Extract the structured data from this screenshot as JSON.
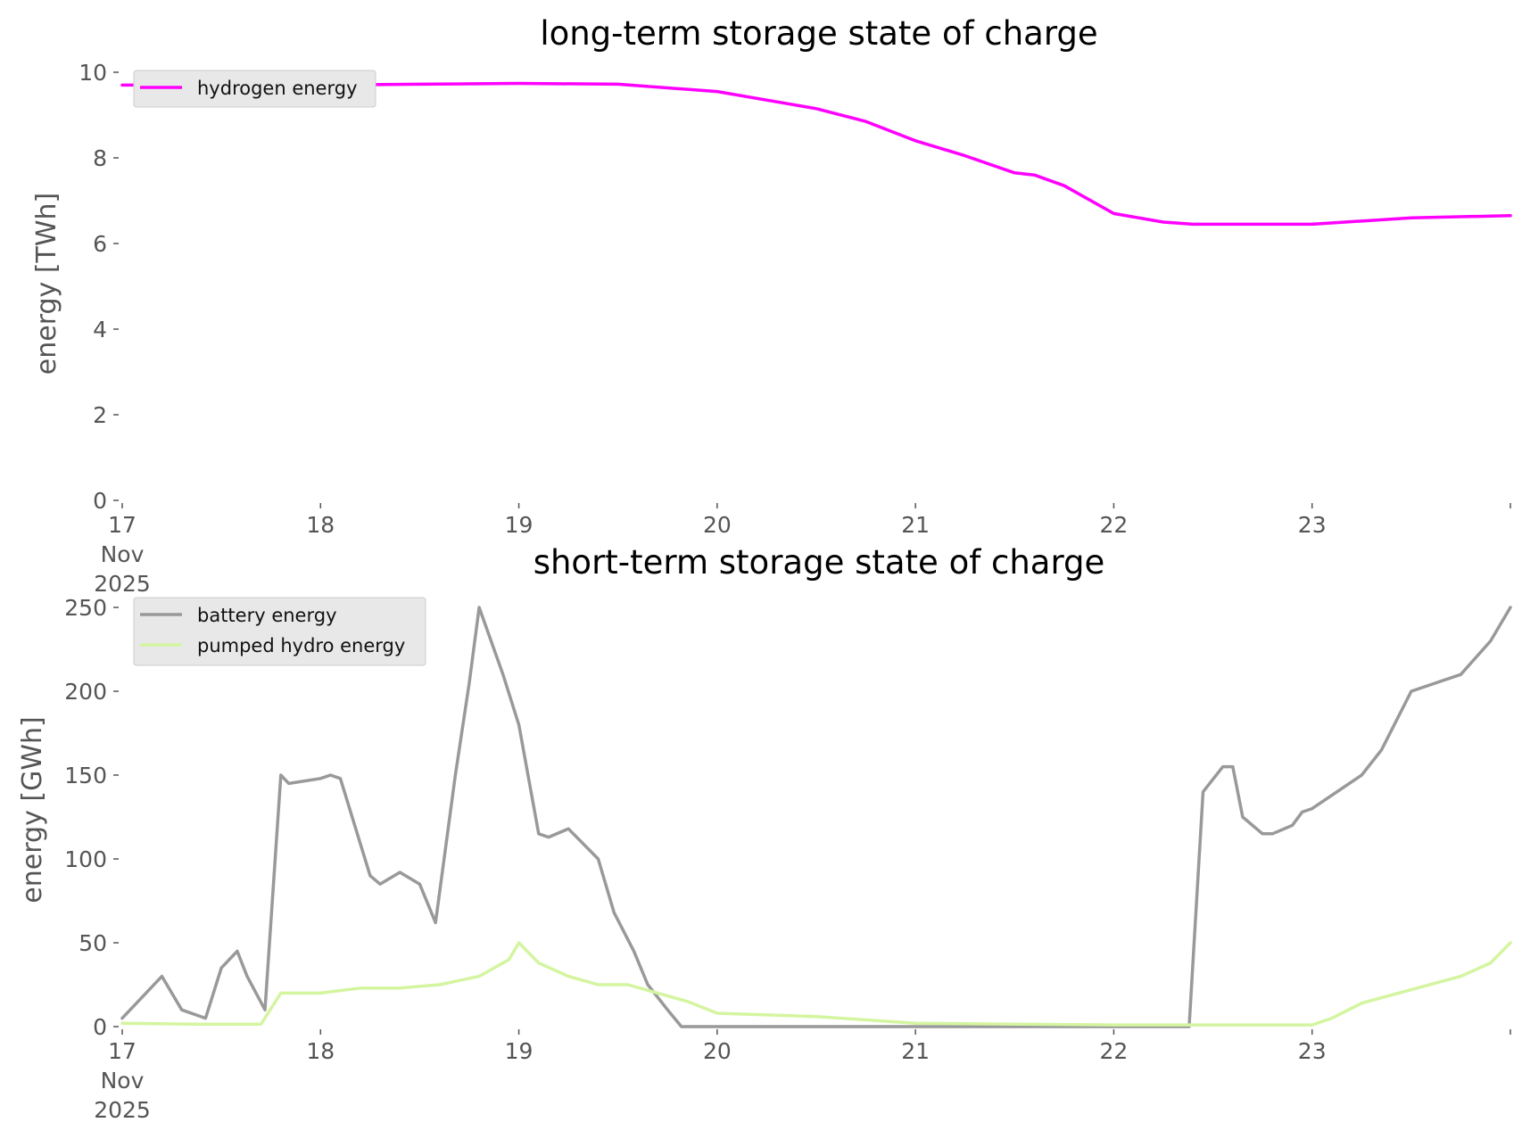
{
  "colors": {
    "hydrogen": "#ff00ff",
    "battery": "#999999",
    "pumped_hydro": "#d4f5a0",
    "legend_bg": "#e8e8e8",
    "tick": "#555555"
  },
  "x_ticks": {
    "labels": [
      "17",
      "18",
      "19",
      "20",
      "21",
      "22",
      "23"
    ],
    "first_extra_lines": [
      "Nov",
      "2025"
    ]
  },
  "chart_data": [
    {
      "type": "line",
      "title": "long-term storage state of charge",
      "xlabel": "",
      "ylabel": "energy [TWh]",
      "xlim": [
        0,
        7
      ],
      "ylim": [
        0,
        10
      ],
      "y_ticks": [
        0,
        2,
        4,
        6,
        8,
        10
      ],
      "grid": false,
      "legend_position": "top-left",
      "x_unit": "days since 17 Nov 2025",
      "series": [
        {
          "name": "hydrogen energy",
          "color": "#ff00ff",
          "x": [
            0,
            0.5,
            1,
            1.5,
            2,
            2.5,
            3,
            3.5,
            3.75,
            4,
            4.25,
            4.5,
            4.6,
            4.75,
            5,
            5.25,
            5.4,
            6,
            6.5,
            7
          ],
          "y": [
            9.7,
            9.7,
            9.7,
            9.72,
            9.74,
            9.72,
            9.55,
            9.15,
            8.85,
            8.4,
            8.05,
            7.65,
            7.6,
            7.35,
            6.7,
            6.5,
            6.45,
            6.45,
            6.6,
            6.65
          ]
        }
      ]
    },
    {
      "type": "line",
      "title": "short-term storage state of charge",
      "xlabel": "",
      "ylabel": "energy [GWh]",
      "xlim": [
        0,
        7
      ],
      "ylim": [
        0,
        250
      ],
      "y_ticks": [
        0,
        50,
        100,
        150,
        200,
        250
      ],
      "grid": false,
      "legend_position": "top-left",
      "x_unit": "days since 17 Nov 2025",
      "series": [
        {
          "name": "battery energy",
          "color": "#999999",
          "x": [
            0,
            0.2,
            0.3,
            0.42,
            0.5,
            0.58,
            0.63,
            0.72,
            0.8,
            0.84,
            1,
            1.05,
            1.1,
            1.25,
            1.3,
            1.4,
            1.5,
            1.58,
            1.68,
            1.75,
            1.8,
            1.92,
            2,
            2.1,
            2.15,
            2.25,
            2.4,
            2.48,
            2.58,
            2.65,
            2.75,
            2.82,
            2.95,
            3.05,
            3.2,
            3.4,
            3.6,
            3.8,
            4.2,
            4.4,
            4.6,
            4.8,
            5,
            5.2,
            5.25,
            5.3,
            5.38,
            5.45,
            5.55,
            5.6,
            5.65,
            5.75,
            5.8,
            5.9,
            5.95,
            6,
            6.25,
            6.35,
            6.5,
            6.75,
            6.9,
            7
          ],
          "y": [
            5,
            30,
            10,
            5,
            35,
            45,
            30,
            10,
            150,
            145,
            148,
            150,
            148,
            90,
            85,
            92,
            85,
            62,
            150,
            205,
            250,
            210,
            180,
            115,
            113,
            118,
            100,
            68,
            45,
            25,
            10,
            0,
            0,
            0,
            0,
            0,
            0,
            0,
            0,
            0,
            0,
            0,
            0,
            0,
            0,
            0,
            0,
            140,
            155,
            155,
            125,
            115,
            115,
            120,
            128,
            130,
            150,
            165,
            200,
            210,
            230,
            250
          ]
        },
        {
          "name": "pumped hydro energy",
          "color": "#d4f5a0",
          "x": [
            0,
            0.35,
            0.7,
            0.8,
            1,
            1.2,
            1.4,
            1.6,
            1.8,
            1.95,
            2,
            2.1,
            2.25,
            2.4,
            2.55,
            2.7,
            2.85,
            3,
            3.5,
            4,
            4.5,
            5,
            5.5,
            6,
            6.1,
            6.25,
            6.5,
            6.75,
            6.9,
            7
          ],
          "y": [
            2,
            1.5,
            1.5,
            20,
            20,
            23,
            23,
            25,
            30,
            40,
            50,
            38,
            30,
            25,
            25,
            20,
            15,
            8,
            6,
            2,
            1.5,
            1,
            1,
            1,
            5,
            14,
            22,
            30,
            38,
            50
          ]
        }
      ]
    }
  ]
}
